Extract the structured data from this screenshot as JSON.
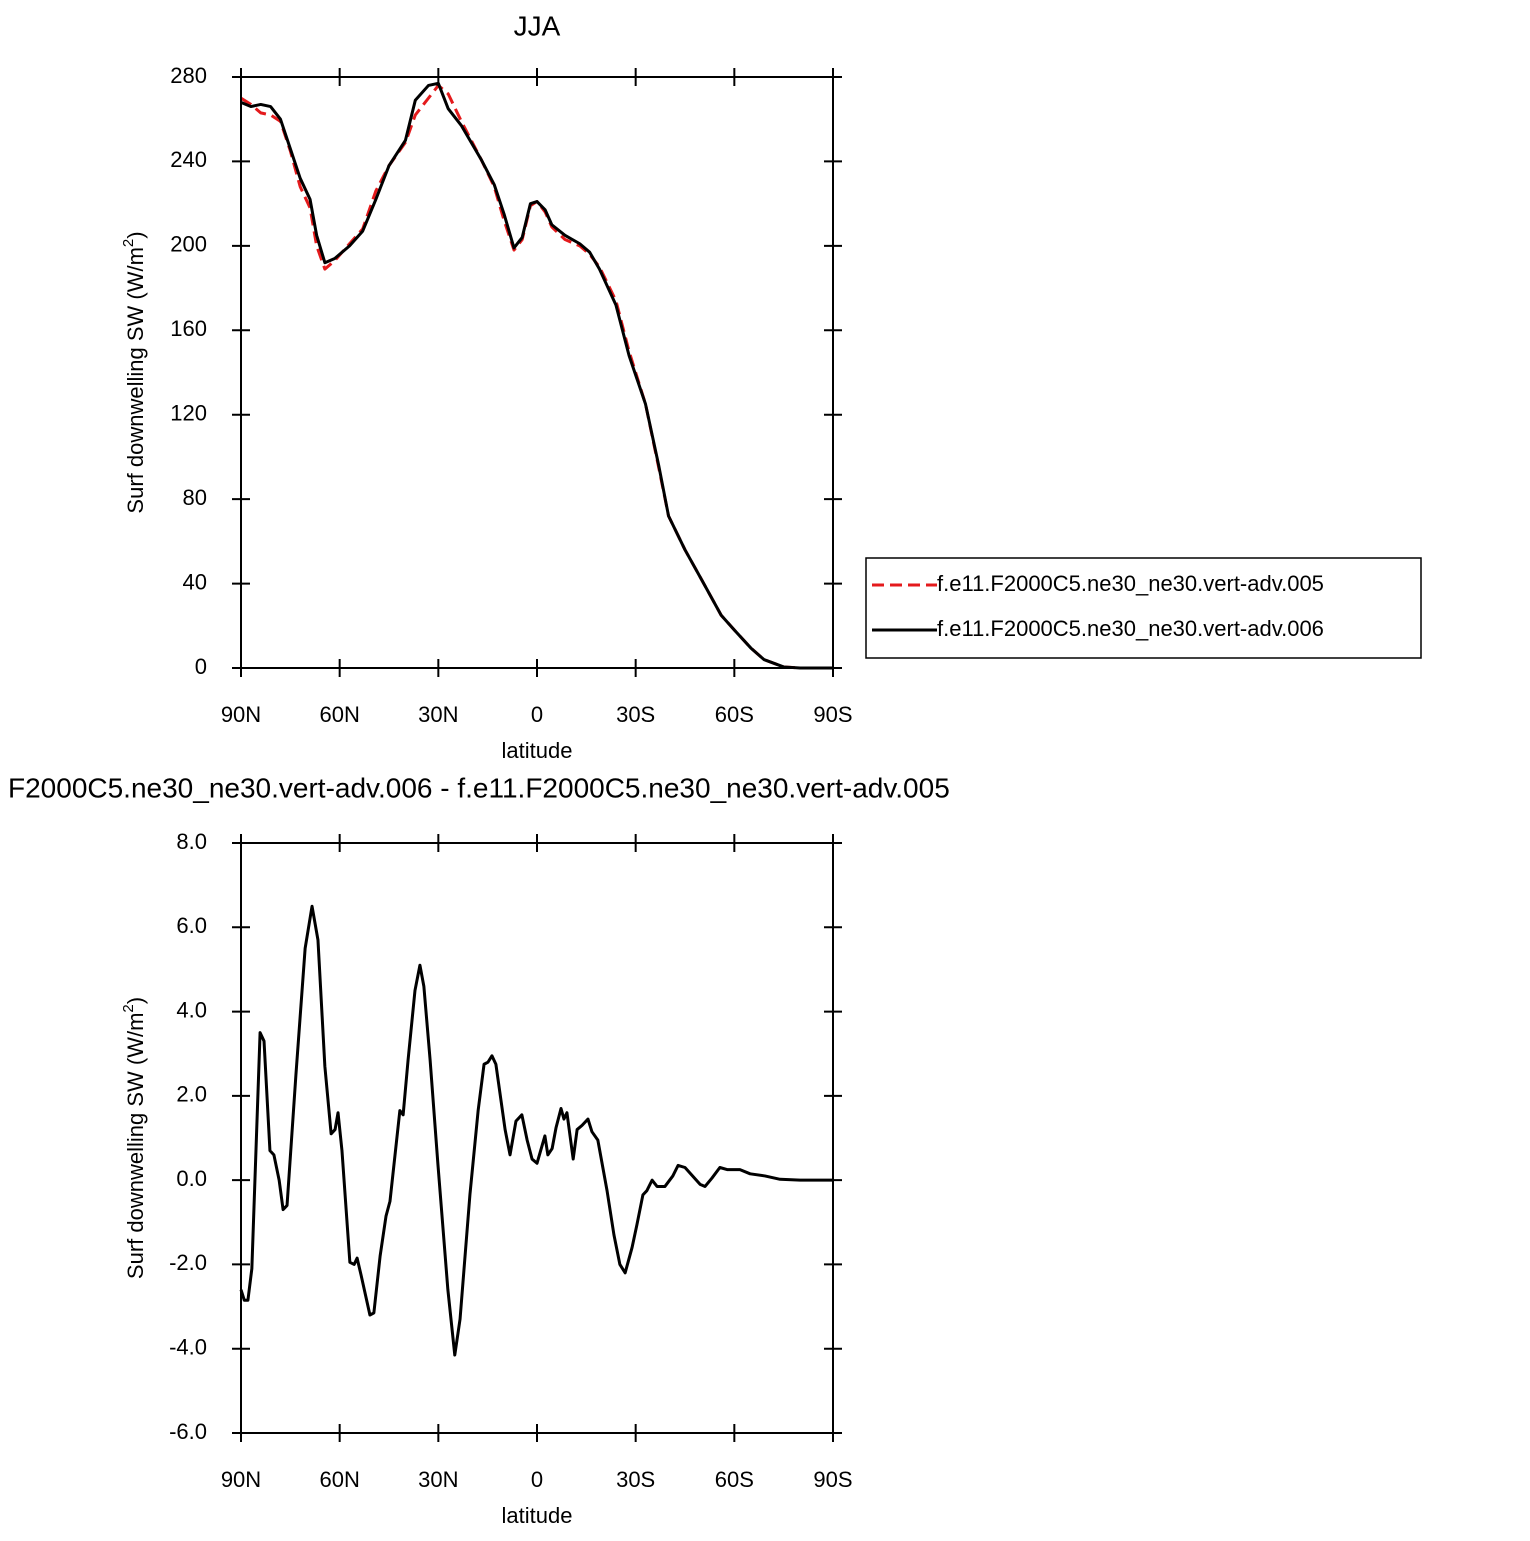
{
  "chart_data": [
    {
      "type": "line",
      "title": "JJA",
      "xlabel": "latitude",
      "ylabel": {
        "text": "Surf downwelling SW (W/m",
        "superscript": "2",
        "suffix": ")"
      },
      "xlim": [
        90,
        -90
      ],
      "xticks": [
        {
          "value": 90,
          "label": "90N"
        },
        {
          "value": 60,
          "label": "60N"
        },
        {
          "value": 30,
          "label": "30N"
        },
        0,
        {
          "value": -30,
          "label": "30S"
        },
        {
          "value": -60,
          "label": "60S"
        },
        {
          "value": -90,
          "label": "90S"
        }
      ],
      "ylim": [
        0,
        280
      ],
      "yticks": [
        0,
        40,
        80,
        120,
        160,
        200,
        240,
        280
      ],
      "legend": "right",
      "x": [
        90,
        87,
        84,
        81,
        78,
        75,
        72,
        69,
        67,
        64.5,
        61.5,
        57,
        53,
        49,
        45,
        40,
        37,
        33,
        30,
        27,
        23,
        17,
        13,
        10,
        7,
        4.5,
        2,
        0,
        -2.5,
        -4.5,
        -8.5,
        -13,
        -16,
        -19,
        -24,
        -28,
        -33,
        -37,
        -40,
        -45,
        -50,
        -56,
        -60,
        -65,
        -69,
        -75,
        -80,
        -85,
        -90
      ],
      "series": [
        {
          "name": "f.e11.F2000C5.ne30_ne30.vert-adv.005",
          "color": "#e41a1c",
          "dashed": true,
          "values": [
            270,
            267,
            263,
            262,
            259,
            245,
            228,
            218,
            200,
            189,
            193,
            201,
            208,
            226,
            238,
            249,
            262,
            270,
            276,
            272,
            259,
            241,
            228,
            212,
            198,
            203,
            219,
            221,
            216,
            209,
            203,
            200,
            196,
            190,
            174,
            150,
            125,
            95,
            72,
            56,
            42,
            25,
            18,
            9.5,
            4,
            0.5,
            0,
            0,
            0
          ]
        },
        {
          "name": "f.e11.F2000C5.ne30_ne30.vert-adv.006",
          "color": "#000000",
          "dashed": false,
          "values": [
            268,
            266,
            267,
            266,
            260,
            246,
            232,
            222,
            205,
            192,
            194,
            200,
            207,
            222,
            238,
            250,
            269,
            276,
            277,
            265,
            257,
            241,
            229,
            215,
            199,
            204,
            220,
            221,
            217,
            210,
            205,
            201,
            197,
            189,
            172,
            148,
            125,
            96,
            72,
            56,
            42,
            25,
            18,
            9.5,
            4,
            0.5,
            0,
            0,
            0
          ]
        }
      ]
    },
    {
      "type": "line",
      "title": "F2000C5.ne30_ne30.vert-adv.006 - f.e11.F2000C5.ne30_ne30.vert-adv.005",
      "xlabel": "latitude",
      "ylabel": {
        "text": "Surf downwelling SW (W/m",
        "superscript": "2",
        "suffix": ")"
      },
      "xlim": [
        90,
        -90
      ],
      "xticks": [
        {
          "value": 90,
          "label": "90N"
        },
        {
          "value": 60,
          "label": "60N"
        },
        {
          "value": 30,
          "label": "30N"
        },
        0,
        {
          "value": -30,
          "label": "30S"
        },
        {
          "value": -60,
          "label": "60S"
        },
        {
          "value": -90,
          "label": "90S"
        }
      ],
      "ylim": [
        -6,
        8
      ],
      "yticks": [
        {
          "value": -6,
          "label": "-6.0"
        },
        {
          "value": -4,
          "label": "-4.0"
        },
        {
          "value": -2,
          "label": "-2.0"
        },
        {
          "value": 0,
          "label": "0.0"
        },
        {
          "value": 2,
          "label": "2.0"
        },
        {
          "value": 4,
          "label": "4.0"
        },
        {
          "value": 6,
          "label": "6.0"
        },
        {
          "value": 8,
          "label": "8.0"
        }
      ],
      "color": "#000000",
      "x": [
        90,
        89,
        87.9,
        86.7,
        84.2,
        83,
        81.2,
        80,
        78.4,
        77.2,
        76,
        73.3,
        70.5,
        68.4,
        66.6,
        64.5,
        62.6,
        61.4,
        60.5,
        59.3,
        56.9,
        55.6,
        54.7,
        53.5,
        50.8,
        49.6,
        47.7,
        45.9,
        44.7,
        41.7,
        40.7,
        39.2,
        37.1,
        35.6,
        34.4,
        32.5,
        30.1,
        27.1,
        25,
        23.4,
        20.4,
        17.9,
        16.1,
        14.9,
        13.7,
        12.5,
        9.7,
        8.2,
        6.4,
        4.6,
        3,
        1.5,
        0,
        -2.4,
        -3.3,
        -4.6,
        -5.8,
        -7.3,
        -8.2,
        -9.1,
        -11,
        -12.2,
        -13.7,
        -15.5,
        -16.7,
        -18.5,
        -21.3,
        -23.4,
        -25.2,
        -26.8,
        -28.9,
        -30.4,
        -32.2,
        -33.4,
        -35,
        -36.5,
        -38.9,
        -41.3,
        -42.9,
        -45,
        -49.6,
        -51.1,
        -53.2,
        -55.6,
        -57.8,
        -61.7,
        -64.8,
        -69.3,
        -73.9,
        -80,
        -90
      ],
      "values": [
        -2.6,
        -2.85,
        -2.85,
        -2.1,
        3.5,
        3.3,
        0.7,
        0.6,
        0,
        -0.7,
        -0.6,
        2.5,
        5.5,
        6.5,
        5.7,
        2.7,
        1.1,
        1.2,
        1.6,
        0.7,
        -1.95,
        -2.0,
        -1.85,
        -2.25,
        -3.2,
        -3.15,
        -1.8,
        -0.85,
        -0.5,
        1.65,
        1.55,
        2.85,
        4.5,
        5.1,
        4.6,
        2.85,
        0.35,
        -2.6,
        -4.15,
        -3.3,
        -0.35,
        1.65,
        2.75,
        2.8,
        2.95,
        2.75,
        1.2,
        0.6,
        1.4,
        1.55,
        0.95,
        0.5,
        0.4,
        1.05,
        0.6,
        0.75,
        1.25,
        1.7,
        1.45,
        1.6,
        0.5,
        1.2,
        1.3,
        1.45,
        1.15,
        0.95,
        -0.25,
        -1.3,
        -2.0,
        -2.2,
        -1.6,
        -1.05,
        -0.35,
        -0.25,
        0,
        -0.15,
        -0.15,
        0.1,
        0.35,
        0.3,
        -0.1,
        -0.15,
        0.05,
        0.3,
        0.25,
        0.25,
        0.15,
        0.1,
        0.02,
        0,
        0
      ]
    }
  ]
}
